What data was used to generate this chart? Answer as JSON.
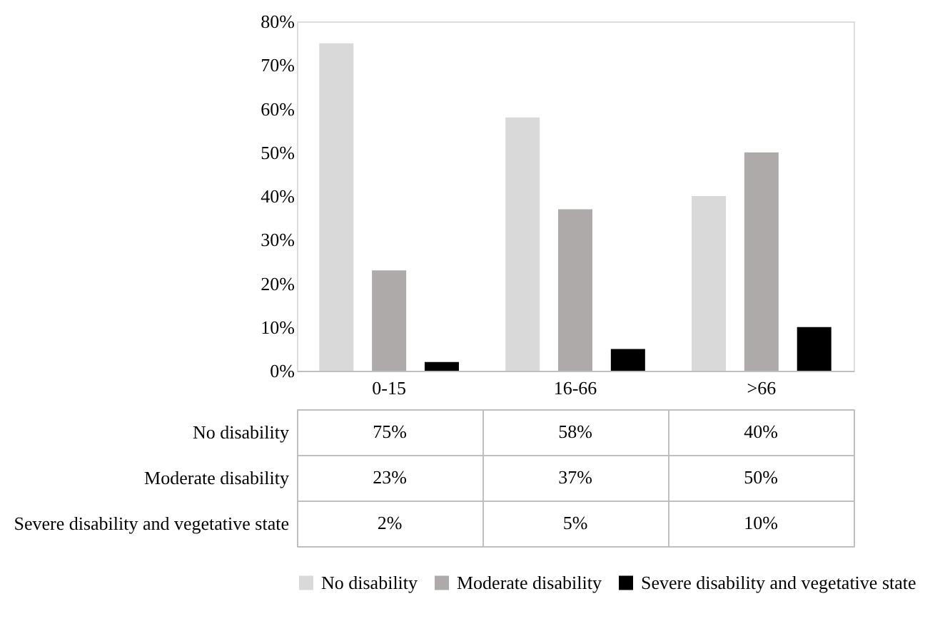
{
  "chart_data": {
    "type": "bar",
    "categories": [
      "0-15",
      "16-66",
      ">66"
    ],
    "series": [
      {
        "name": "No disability",
        "color": "#d9d9d9",
        "values": [
          75,
          58,
          40
        ],
        "value_labels": [
          "75%",
          "58%",
          "40%"
        ]
      },
      {
        "name": "Moderate disability",
        "color": "#aeaaaa",
        "values": [
          23,
          37,
          50
        ],
        "value_labels": [
          "23%",
          "37%",
          "50%"
        ]
      },
      {
        "name": "Severe disability and vegetative state",
        "color": "#000000",
        "values": [
          2,
          5,
          10
        ],
        "value_labels": [
          "2%",
          "5%",
          "10%"
        ]
      }
    ],
    "ylim": [
      0,
      80
    ],
    "yticks": [
      {
        "value": 0,
        "label": "0%"
      },
      {
        "value": 10,
        "label": "10%"
      },
      {
        "value": 20,
        "label": "20%"
      },
      {
        "value": 30,
        "label": "30%"
      },
      {
        "value": 40,
        "label": "40%"
      },
      {
        "value": 50,
        "label": "50%"
      },
      {
        "value": 60,
        "label": "60%"
      },
      {
        "value": 70,
        "label": "70%"
      },
      {
        "value": 80,
        "label": "80%"
      }
    ],
    "grid": false,
    "legend": "bottom"
  }
}
